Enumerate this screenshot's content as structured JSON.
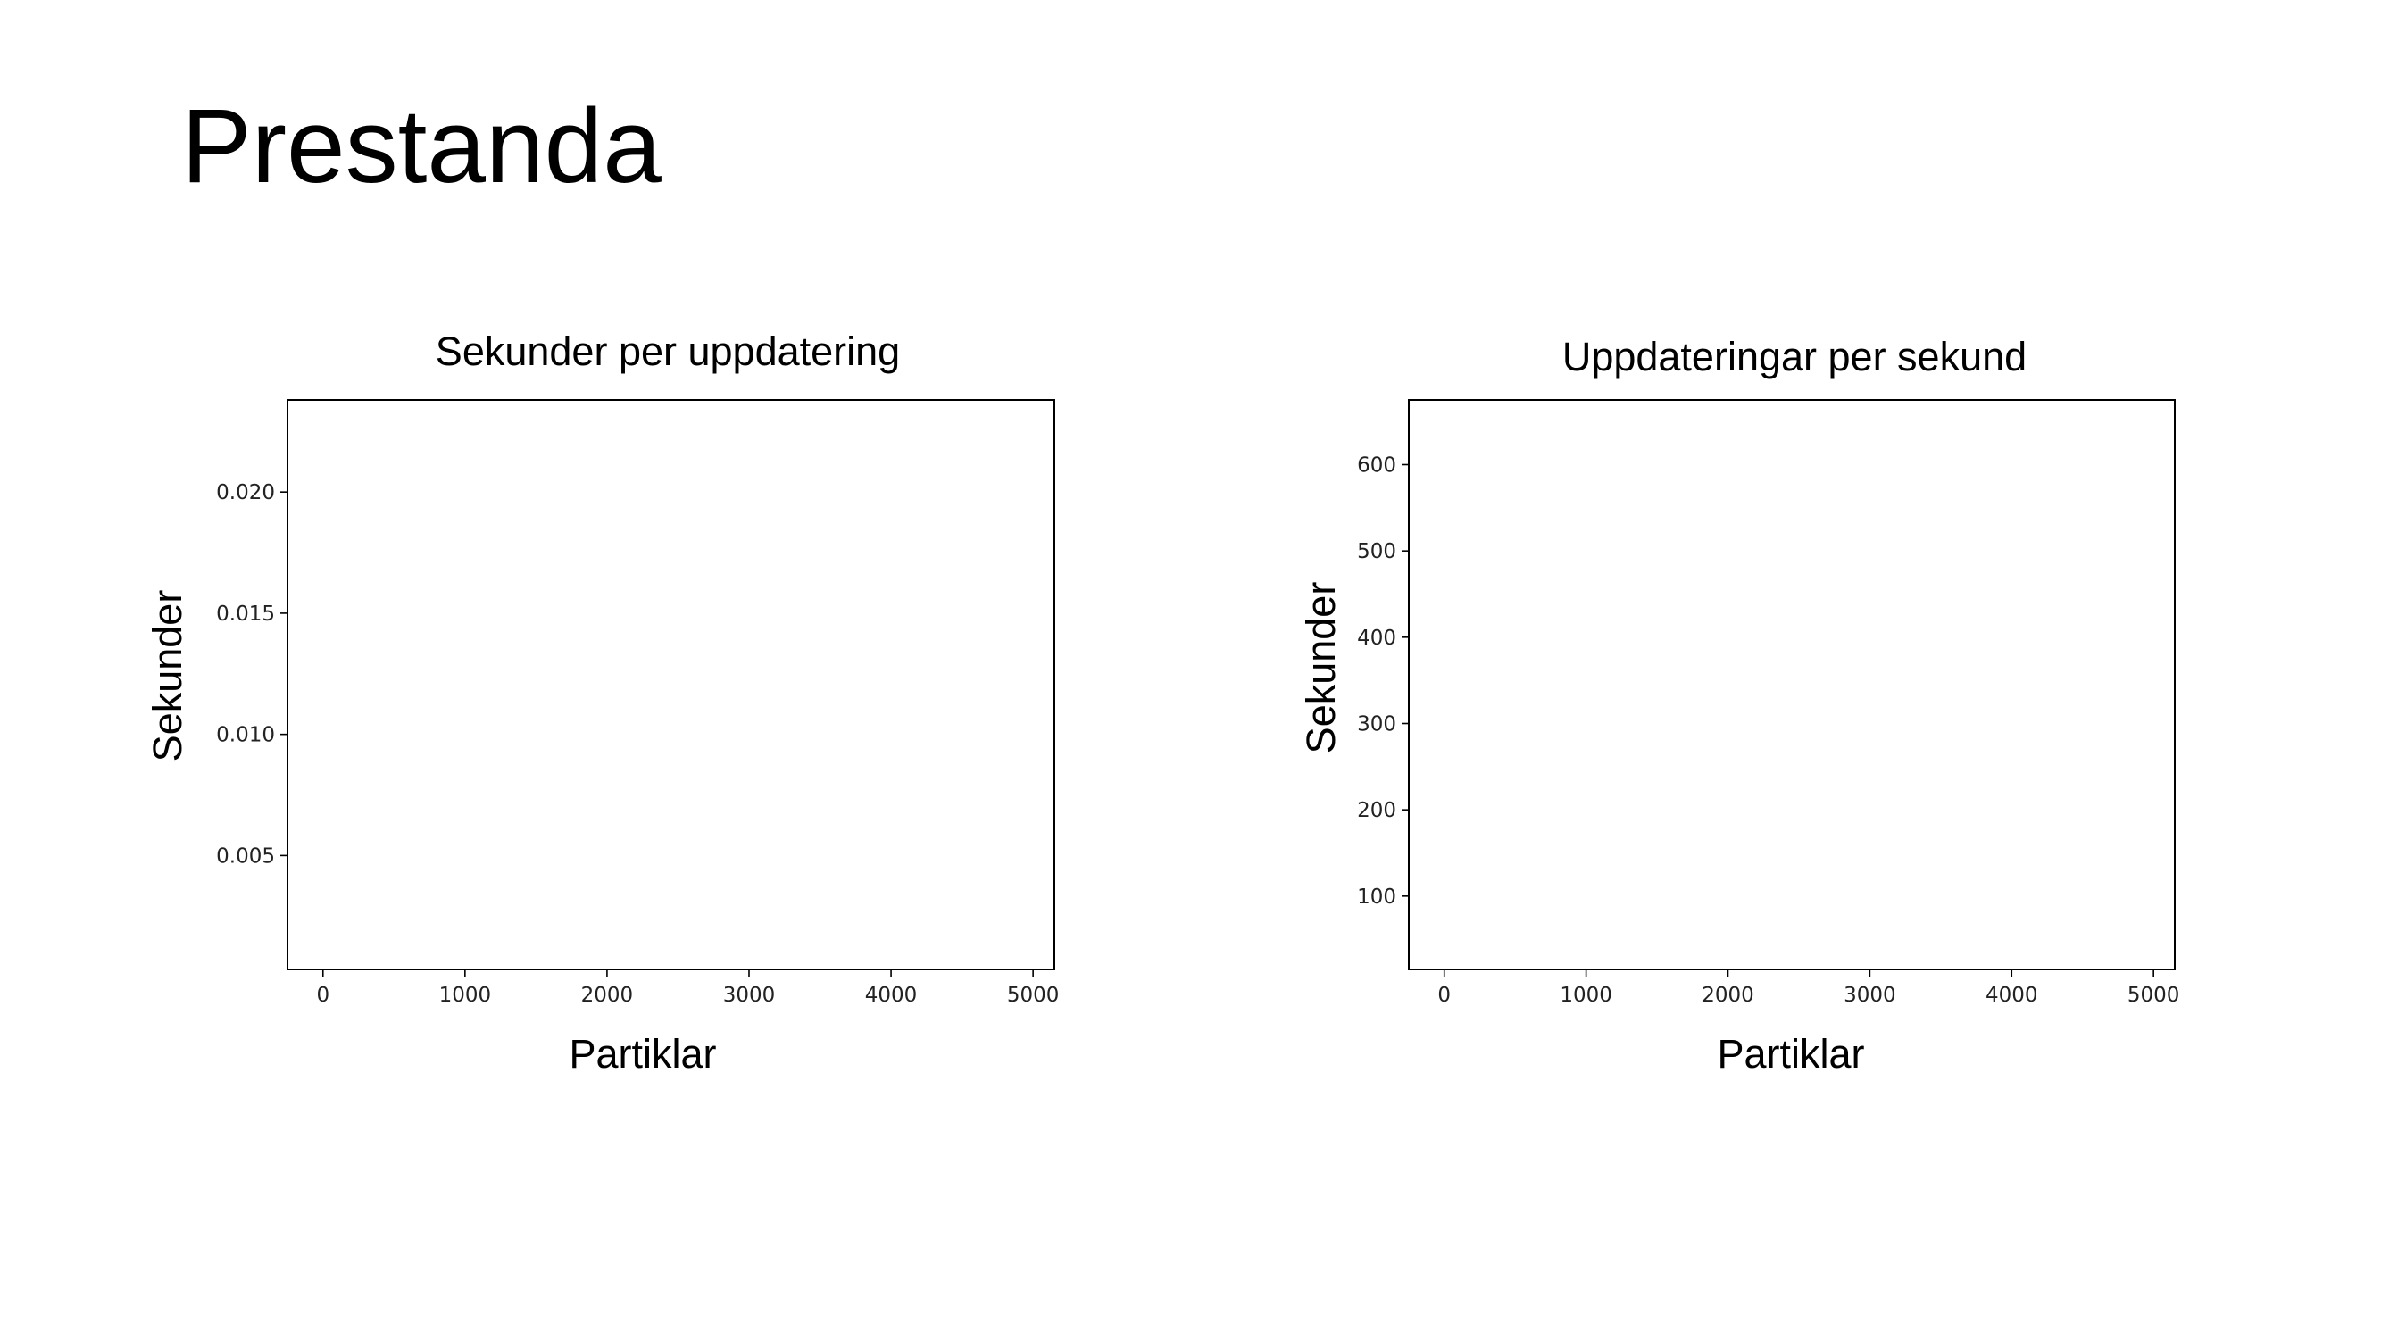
{
  "slide": {
    "title": "Prestanda"
  },
  "chart_data": [
    {
      "type": "line",
      "title": "Sekunder per uppdatering",
      "xlabel": "Partiklar",
      "ylabel": "Sekunder",
      "xlim": [
        -250,
        5150
      ],
      "ylim": [
        0.0003,
        0.0238
      ],
      "x_ticks": [
        "0",
        "1000",
        "2000",
        "3000",
        "4000",
        "5000"
      ],
      "y_ticks": [
        "0.005",
        "0.010",
        "0.015",
        "0.020"
      ],
      "series": [],
      "grid": false
    },
    {
      "type": "line",
      "title": "Uppdateringar per sekund",
      "xlabel": "Partiklar",
      "ylabel": "Sekunder",
      "xlim": [
        -250,
        5150
      ],
      "ylim": [
        15,
        675
      ],
      "x_ticks": [
        "0",
        "1000",
        "2000",
        "3000",
        "4000",
        "5000"
      ],
      "y_ticks": [
        "100",
        "200",
        "300",
        "400",
        "500",
        "600"
      ],
      "series": [],
      "grid": false
    }
  ]
}
